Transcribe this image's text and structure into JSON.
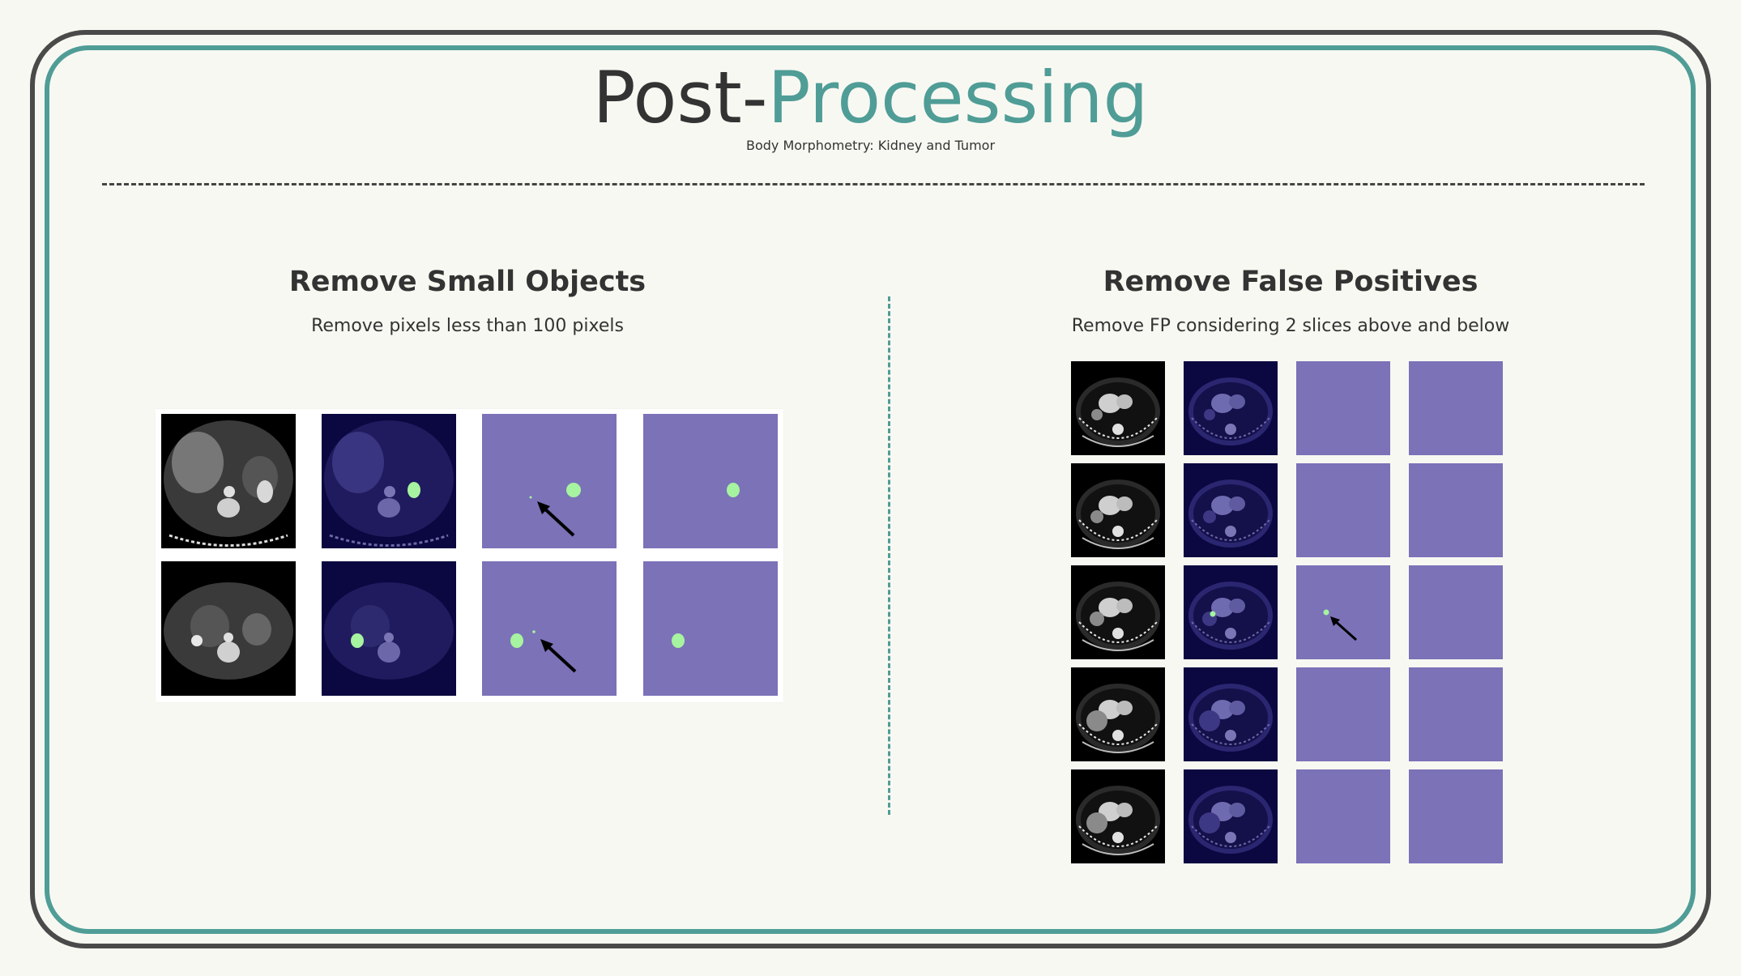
{
  "header": {
    "title_dark": "Post-",
    "title_accent": "Processing",
    "subtitle": "Body Morphometry: Kidney and Tumor"
  },
  "left_section": {
    "title": "Remove Small Objects",
    "description": "Remove pixels less than 100 pixels"
  },
  "right_section": {
    "title": "Remove False Positives",
    "description": "Remove FP considering 2 slices above and below"
  },
  "colors": {
    "accent": "#4f9d96",
    "frame": "#4a4a4a",
    "mask_background": "#7b72b8",
    "overlay_background": "#0b0740",
    "segmentation": "#a6f3a0"
  },
  "icons": [
    "arrow-pointer-icon"
  ]
}
